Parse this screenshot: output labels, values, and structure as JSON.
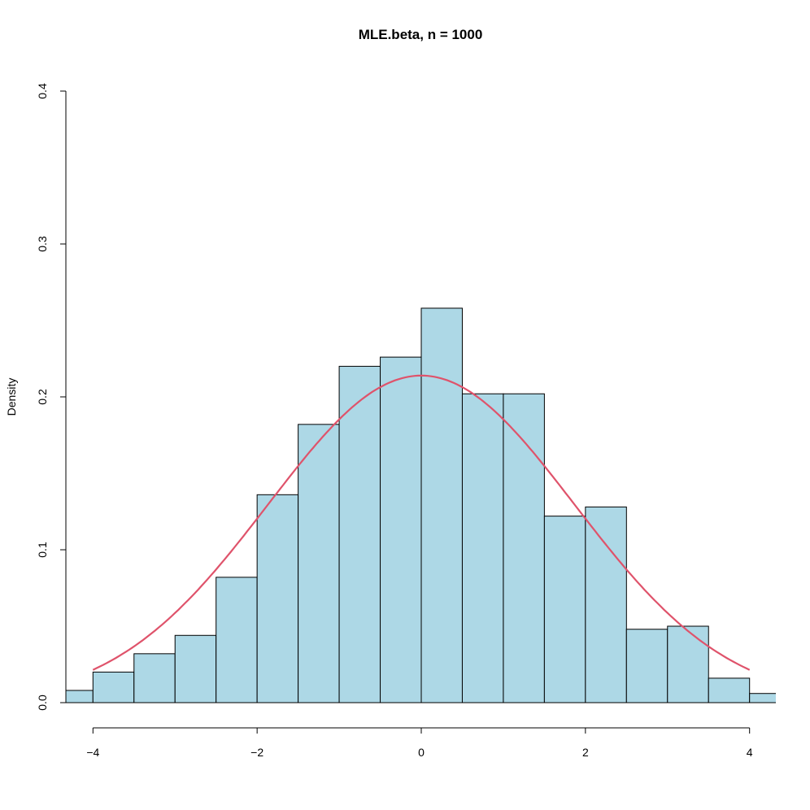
{
  "chart_data": {
    "type": "bar",
    "title": "MLE.beta, n = 1000",
    "xlabel": "",
    "ylabel": "Density",
    "xlim": [
      -4.33,
      4.32
    ],
    "ylim": [
      0,
      0.4
    ],
    "grid": false,
    "x_ticks": [
      -4,
      -2,
      0,
      2,
      4
    ],
    "x_tick_labels": [
      "−4",
      "−2",
      "0",
      "2",
      "4"
    ],
    "y_ticks": [
      0,
      0.1,
      0.2,
      0.3,
      0.4
    ],
    "y_tick_labels": [
      "0.0",
      "0.1",
      "0.2",
      "0.3",
      "0.4"
    ],
    "bin_edges": [
      -4.5,
      -4,
      -3.5,
      -3,
      -2.5,
      -2,
      -1.5,
      -1,
      -0.5,
      0,
      0.5,
      1,
      1.5,
      2,
      2.5,
      3,
      3.5,
      4,
      4.5
    ],
    "values": [
      0.008,
      0.02,
      0.032,
      0.044,
      0.082,
      0.136,
      0.182,
      0.22,
      0.226,
      0.258,
      0.202,
      0.202,
      0.122,
      0.128,
      0.048,
      0.05,
      0.016,
      0.006
    ],
    "bar_fill": "#ADD8E6",
    "bar_stroke": "#000000",
    "curve": {
      "type": "normal-density",
      "mean": 0,
      "sd": 1.865,
      "from": -4,
      "to": 4,
      "color": "#DF536B"
    }
  }
}
